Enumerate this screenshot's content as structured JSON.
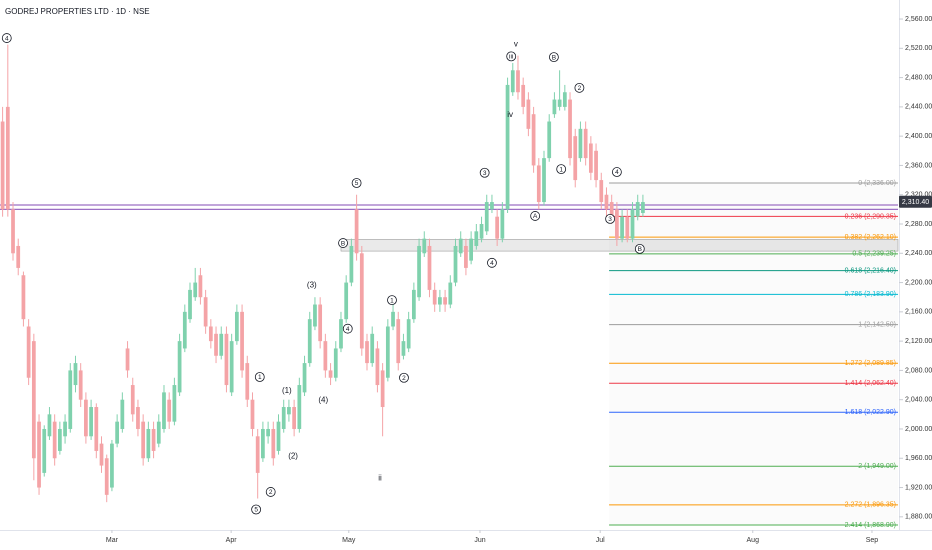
{
  "chart_data": {
    "type": "candlestick",
    "title": "GODREJ PROPERTIES LTD · 1D · NSE",
    "up_color": "#7fd1ad",
    "down_color": "#f4a3a6",
    "xlim": [
      -0.5,
      172
    ],
    "xticks": [
      {
        "value": 21,
        "label": "Mar"
      },
      {
        "value": 43.9,
        "label": "Apr"
      },
      {
        "value": 66.5,
        "label": "May"
      },
      {
        "value": 91.7,
        "label": "Jun"
      },
      {
        "value": 114.8,
        "label": "Jul"
      },
      {
        "value": 144.1,
        "label": "Aug"
      },
      {
        "value": 167,
        "label": "Sep"
      }
    ],
    "ylim": [
      1862,
      2586
    ],
    "yticks": [
      {
        "value": 1880,
        "label": "1,880.00"
      },
      {
        "value": 1920,
        "label": "1,920.00"
      },
      {
        "value": 1960,
        "label": "1,960.00"
      },
      {
        "value": 2000,
        "label": "2,000.00"
      },
      {
        "value": 2040,
        "label": "2,040.00"
      },
      {
        "value": 2080,
        "label": "2,080.00"
      },
      {
        "value": 2120,
        "label": "2,120.00"
      },
      {
        "value": 2160,
        "label": "2,160.00"
      },
      {
        "value": 2200,
        "label": "2,200.00"
      },
      {
        "value": 2240,
        "label": "2,240.00"
      },
      {
        "value": 2280,
        "label": "2,280.00"
      },
      {
        "value": 2320,
        "label": "2,320.00"
      },
      {
        "value": 2360,
        "label": "2,360.00"
      },
      {
        "value": 2400,
        "label": "2,400.00"
      },
      {
        "value": 2440,
        "label": "2,440.00"
      },
      {
        "value": 2480,
        "label": "2,480.00"
      },
      {
        "value": 2520,
        "label": "2,520.00"
      },
      {
        "value": 2560,
        "label": "2,560.00"
      }
    ],
    "open": [
      2420,
      2440,
      2300,
      2250,
      2210,
      2140,
      2120,
      2010,
      1940,
      1990,
      2010,
      1970,
      1990,
      2000,
      2060,
      2080,
      2040,
      1990,
      2030,
      1980,
      1960,
      1920,
      1980,
      2000,
      2110,
      2060,
      2030,
      2010,
      1960,
      2000,
      1980,
      2000,
      2040,
      2010,
      2050,
      2110,
      2150,
      2180,
      2210,
      2180,
      2140,
      2130,
      2100,
      2130,
      2050,
      2120,
      2160,
      2090,
      2040,
      1990,
      1960,
      1990,
      2000,
      1970,
      2000,
      2020,
      2030,
      2000,
      2050,
      2090,
      2140,
      2170,
      2120,
      2080,
      2070,
      2110,
      2150,
      2200,
      2300,
      2240,
      2120,
      2090,
      2110,
      2080,
      2070,
      2140,
      2150,
      2100,
      2110,
      2150,
      2180,
      2240,
      2250,
      2190,
      2170,
      2180,
      2170,
      2200,
      2240,
      2250,
      2230,
      2250,
      2260,
      2270,
      2300,
      2290,
      2260,
      2300,
      2460,
      2490,
      2470,
      2450,
      2430,
      2360,
      2310,
      2370,
      2430,
      2440,
      2440,
      2450,
      2400,
      2370,
      2410,
      2390,
      2380,
      2340,
      2320,
      2310,
      2300,
      2260,
      2290,
      2260,
      2290,
      2295
    ],
    "high": [
      2440,
      2525,
      2310,
      2260,
      2215,
      2150,
      2130,
      2020,
      2005,
      2030,
      2020,
      2010,
      2020,
      2090,
      2100,
      2090,
      2050,
      2040,
      2035,
      1990,
      1965,
      1985,
      2020,
      2050,
      2120,
      2070,
      2040,
      2020,
      2010,
      2010,
      2020,
      2060,
      2050,
      2070,
      2130,
      2170,
      2200,
      2220,
      2220,
      2190,
      2150,
      2140,
      2140,
      2140,
      2130,
      2170,
      2170,
      2100,
      2050,
      2000,
      2010,
      2010,
      2010,
      2020,
      2040,
      2040,
      2040,
      2070,
      2100,
      2160,
      2180,
      2180,
      2130,
      2090,
      2120,
      2160,
      2210,
      2260,
      2320,
      2250,
      2130,
      2140,
      2120,
      2090,
      2150,
      2170,
      2160,
      2130,
      2160,
      2200,
      2260,
      2270,
      2260,
      2200,
      2190,
      2190,
      2210,
      2260,
      2270,
      2260,
      2270,
      2280,
      2290,
      2320,
      2320,
      2300,
      2310,
      2480,
      2500,
      2510,
      2480,
      2460,
      2440,
      2370,
      2380,
      2430,
      2460,
      2490,
      2470,
      2460,
      2410,
      2420,
      2420,
      2400,
      2390,
      2350,
      2330,
      2320,
      2310,
      2300,
      2300,
      2310,
      2320,
      2320
    ],
    "low": [
      2290,
      2290,
      2230,
      2210,
      2140,
      2060,
      1930,
      1910,
      1935,
      1985,
      1950,
      1965,
      1980,
      1995,
      2050,
      2030,
      1980,
      1985,
      1960,
      1940,
      1900,
      1915,
      1975,
      1995,
      2070,
      2010,
      1990,
      1950,
      1955,
      1960,
      1975,
      1995,
      2000,
      2005,
      2045,
      2105,
      2145,
      2175,
      2170,
      2130,
      2110,
      2090,
      2095,
      2050,
      2045,
      2115,
      2070,
      2030,
      1990,
      1905,
      1955,
      1980,
      1950,
      1965,
      1995,
      2010,
      1990,
      1995,
      2045,
      2085,
      2135,
      2110,
      2070,
      2060,
      2065,
      2105,
      2145,
      2195,
      2230,
      2100,
      2080,
      2085,
      2050,
      1990,
      2065,
      2135,
      2080,
      2095,
      2105,
      2145,
      2175,
      2235,
      2180,
      2160,
      2160,
      2160,
      2165,
      2195,
      2235,
      2210,
      2225,
      2245,
      2255,
      2265,
      2295,
      2250,
      2255,
      2295,
      2455,
      2450,
      2430,
      2400,
      2350,
      2300,
      2305,
      2365,
      2425,
      2435,
      2435,
      2360,
      2330,
      2365,
      2360,
      2340,
      2330,
      2300,
      2290,
      2280,
      2250,
      2255,
      2255,
      2255,
      2285,
      2290
    ],
    "close": [
      2300,
      2300,
      2240,
      2220,
      2150,
      2070,
      1960,
      1920,
      2000,
      2020,
      1960,
      2000,
      2010,
      2080,
      2090,
      2040,
      1990,
      2030,
      1970,
      1950,
      1910,
      1980,
      2010,
      2040,
      2080,
      2020,
      2000,
      1960,
      2000,
      1970,
      2010,
      2050,
      2010,
      2060,
      2120,
      2160,
      2190,
      2200,
      2180,
      2140,
      2120,
      2100,
      2130,
      2060,
      2120,
      2160,
      2080,
      2040,
      2000,
      1940,
      2000,
      2000,
      1960,
      2010,
      2030,
      2030,
      2000,
      2060,
      2090,
      2150,
      2170,
      2120,
      2080,
      2070,
      2110,
      2150,
      2200,
      2250,
      2240,
      2110,
      2090,
      2130,
      2060,
      2030,
      2140,
      2160,
      2090,
      2120,
      2150,
      2190,
      2250,
      2260,
      2190,
      2170,
      2180,
      2170,
      2200,
      2250,
      2260,
      2220,
      2260,
      2270,
      2280,
      2310,
      2310,
      2260,
      2300,
      2470,
      2490,
      2460,
      2440,
      2410,
      2360,
      2310,
      2370,
      2420,
      2450,
      2450,
      2460,
      2370,
      2340,
      2410,
      2370,
      2350,
      2340,
      2310,
      2300,
      2290,
      2260,
      2290,
      2260,
      2300,
      2310,
      2310
    ],
    "hlines": [
      {
        "value": 2306,
        "color": "#9c6fc4"
      },
      {
        "value": 2300,
        "color": "#9c6fc4"
      }
    ],
    "zone": [
      2243,
      2259
    ],
    "last_price": {
      "value": 2310.4,
      "label": "2,310.40"
    },
    "fib": [
      {
        "label": "0 (2,336.00)",
        "value": 2336,
        "color": "#9e9e9e"
      },
      {
        "label": "0.236 (2,290.35)",
        "value": 2290.35,
        "color": "#f23645"
      },
      {
        "label": "0.382 (2,262.10)",
        "value": 2262.1,
        "color": "#ff9800"
      },
      {
        "label": "0.5 (2,239.25)",
        "value": 2239.25,
        "color": "#4caf50"
      },
      {
        "label": "0.618 (2,216.40)",
        "value": 2216.4,
        "color": "#089981"
      },
      {
        "label": "0.786 (2,183.90)",
        "value": 2183.9,
        "color": "#00bcd4"
      },
      {
        "label": "1 (2,142.50)",
        "value": 2142.5,
        "color": "#9e9e9e"
      },
      {
        "label": "1.272 (2,089.85)",
        "value": 2089.85,
        "color": "#ff9800"
      },
      {
        "label": "1.414 (2,062.40)",
        "value": 2062.4,
        "color": "#f23645"
      },
      {
        "label": "1.618 (2,022.90)",
        "value": 2022.9,
        "color": "#2962ff"
      },
      {
        "label": "2 (1,949.00)",
        "value": 1949,
        "color": "#4caf50"
      },
      {
        "label": "2.272 (1,896.35)",
        "value": 1896.35,
        "color": "#ff9800"
      },
      {
        "label": "2.414 (1,868.90)",
        "value": 1868.9,
        "color": "#4caf50"
      }
    ],
    "wave_labels": [
      {
        "text": "4",
        "x": 0.8,
        "y": 2534,
        "circled": true
      },
      {
        "text": "5",
        "x": 68,
        "y": 2336,
        "circled": true
      },
      {
        "text": "B",
        "x": 65.4,
        "y": 2254,
        "circled": true
      },
      {
        "text": "3",
        "x": 92.6,
        "y": 2350,
        "circled": true
      },
      {
        "text": "4",
        "x": 94,
        "y": 2227,
        "circled": true
      },
      {
        "text": "A",
        "x": 102.3,
        "y": 2291,
        "circled": true
      },
      {
        "text": "B",
        "x": 105.9,
        "y": 2508,
        "circled": true
      },
      {
        "text": "2",
        "x": 110.8,
        "y": 2466,
        "circled": true
      },
      {
        "text": "1",
        "x": 107.3,
        "y": 2355,
        "circled": true
      },
      {
        "text": "4",
        "x": 118,
        "y": 2351,
        "circled": true
      },
      {
        "text": "3",
        "x": 116.7,
        "y": 2287,
        "circled": true
      },
      {
        "text": "B",
        "x": 122.4,
        "y": 2246,
        "circled": true
      },
      {
        "text": "iii",
        "x": 97.7,
        "y": 2509,
        "circled": true
      },
      {
        "text": "v",
        "x": 98.6,
        "y": 2526,
        "circled": false
      },
      {
        "text": "iv",
        "x": 97.5,
        "y": 2430,
        "circled": false
      },
      {
        "text": "1",
        "x": 74.8,
        "y": 2176,
        "circled": true
      },
      {
        "text": "2",
        "x": 77.1,
        "y": 2070,
        "circled": true
      },
      {
        "text": "4",
        "x": 66.3,
        "y": 2137,
        "circled": true
      },
      {
        "text": "ii",
        "x": 72.5,
        "y": 1933,
        "circled": false
      },
      {
        "text": "1",
        "x": 49.4,
        "y": 2071,
        "circled": true
      },
      {
        "text": "2",
        "x": 51.5,
        "y": 1914,
        "circled": true
      },
      {
        "text": "5",
        "x": 48.7,
        "y": 1890,
        "circled": true
      },
      {
        "text": "(1)",
        "x": 54.6,
        "y": 2053,
        "circled": false
      },
      {
        "text": "(2)",
        "x": 55.8,
        "y": 1963,
        "circled": false
      },
      {
        "text": "(3)",
        "x": 59.4,
        "y": 2197,
        "circled": false
      },
      {
        "text": "(4)",
        "x": 61.6,
        "y": 2040,
        "circled": false
      }
    ]
  }
}
